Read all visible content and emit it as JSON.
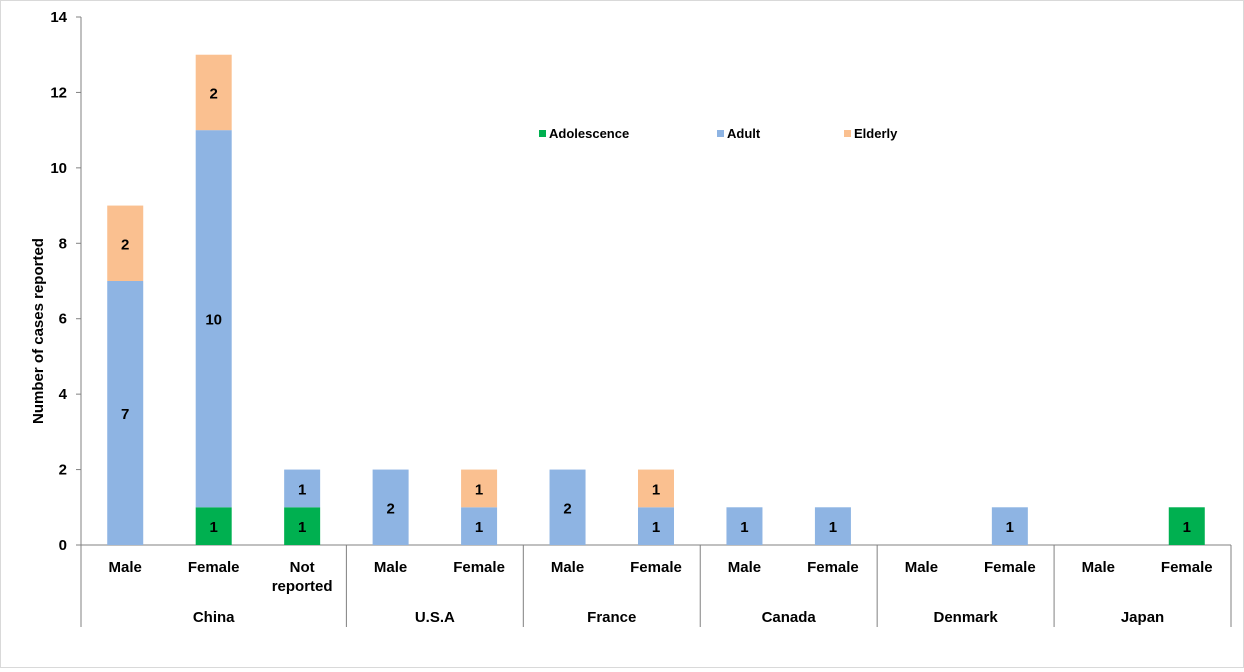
{
  "chart_data": {
    "type": "bar",
    "stacked": true,
    "ylabel": "Number of cases reported",
    "xlabel": "",
    "ylim": [
      0,
      14
    ],
    "yticks": [
      0,
      2,
      4,
      6,
      8,
      10,
      12,
      14
    ],
    "grid": false,
    "legend_position": "top-center",
    "groups": [
      {
        "name": "China",
        "categories": [
          "Male",
          "Female",
          "Not reported"
        ]
      },
      {
        "name": "U.S.A",
        "categories": [
          "Male",
          "Female"
        ]
      },
      {
        "name": "France",
        "categories": [
          "Male",
          "Female"
        ]
      },
      {
        "name": "Canada",
        "categories": [
          "Male",
          "Female"
        ]
      },
      {
        "name": "Denmark",
        "categories": [
          "Male",
          "Female"
        ]
      },
      {
        "name": "Japan",
        "categories": [
          "Male",
          "Female"
        ]
      }
    ],
    "categories": [
      "Male",
      "Female",
      "Not reported",
      "Male",
      "Female",
      "Male",
      "Female",
      "Male",
      "Female",
      "Male",
      "Female",
      "Male",
      "Female"
    ],
    "series": [
      {
        "name": "Adolescence",
        "color": "#00b050",
        "values": [
          0,
          1,
          1,
          0,
          0,
          0,
          0,
          0,
          0,
          0,
          0,
          0,
          1
        ]
      },
      {
        "name": "Adult",
        "color": "#8eb4e3",
        "values": [
          7,
          10,
          1,
          2,
          1,
          2,
          1,
          1,
          1,
          0,
          1,
          0,
          0
        ]
      },
      {
        "name": "Elderly",
        "color": "#fac090",
        "values": [
          2,
          2,
          0,
          0,
          1,
          0,
          1,
          0,
          0,
          0,
          0,
          0,
          0
        ]
      }
    ]
  }
}
